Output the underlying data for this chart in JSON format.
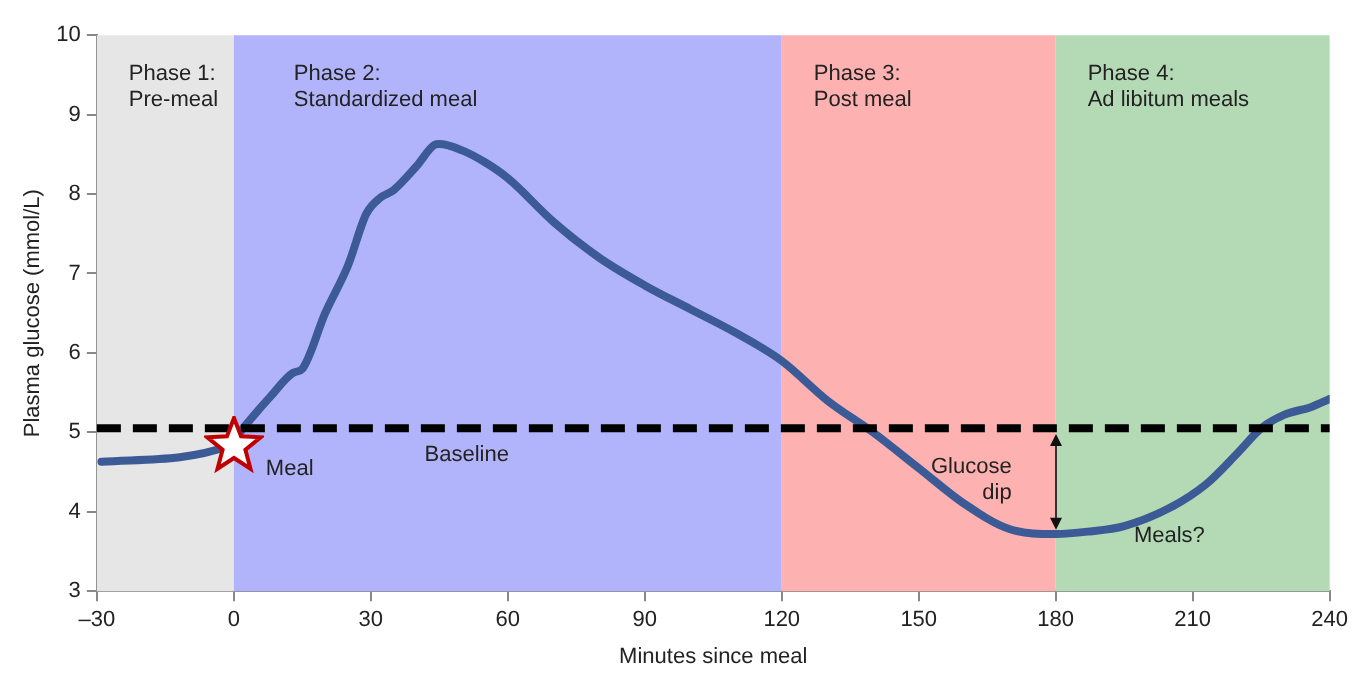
{
  "chart_data": {
    "type": "line",
    "xlabel": "Minutes since meal",
    "ylabel": "Plasma glucose (mmol/L)",
    "xlim": [
      -30,
      240
    ],
    "xticks": [
      {
        "value": -30,
        "label": "–30"
      },
      0,
      30,
      60,
      90,
      120,
      150,
      180,
      210,
      240
    ],
    "ylim": [
      3,
      10
    ],
    "yticks": [
      3,
      4,
      5,
      6,
      7,
      8,
      9,
      10
    ],
    "grid": false,
    "legend": false,
    "marker": "none",
    "line_style": "solid",
    "series": [
      {
        "color": "#3c5a96",
        "x": [
          -29,
          -1,
          2,
          8,
          13,
          15,
          20,
          25,
          29,
          32,
          35,
          40,
          44,
          45,
          50,
          55,
          60,
          70,
          80,
          90,
          100,
          110,
          120,
          130,
          140,
          150,
          160,
          170,
          180,
          187,
          195,
          205,
          213,
          220,
          225,
          230,
          236,
          240
        ],
        "values": [
          4.63,
          4.83,
          5.05,
          5.45,
          5.75,
          5.8,
          6.5,
          7.1,
          7.75,
          7.95,
          8.05,
          8.35,
          8.62,
          8.63,
          8.55,
          8.4,
          8.2,
          7.65,
          7.2,
          6.85,
          6.55,
          6.25,
          5.9,
          5.4,
          5.0,
          4.55,
          4.1,
          3.78,
          3.72,
          3.75,
          3.82,
          4.05,
          4.35,
          4.75,
          5.05,
          5.22,
          5.32,
          5.42
        ]
      }
    ],
    "bands": [
      {
        "axis": "x",
        "from": -30,
        "to": 0,
        "label": "Phase 1:\nPre-meal",
        "color": "#e6e6e6"
      },
      {
        "axis": "x",
        "from": 0,
        "to": 120,
        "label": "Phase 2:\nStandardized meal",
        "color": "#b2b4fb"
      },
      {
        "axis": "x",
        "from": 120,
        "to": 180,
        "label": "Phase 3:\nPost meal",
        "color": "#fdb1b0"
      },
      {
        "axis": "x",
        "from": 180,
        "to": 240,
        "label": "Phase 4:\nAd libitum meals",
        "color": "#b4d9b5"
      }
    ],
    "ref_lines": [
      {
        "axis": "y",
        "value": 5.05,
        "label": "Baseline",
        "color": "#000000",
        "line_style": "dashed"
      }
    ],
    "annotations": [
      {
        "text": "Meal",
        "x": 0,
        "y": 4.83
      },
      {
        "text": "Glucose\ndip",
        "x": 180,
        "y": 4.4
      },
      "Meals?"
    ]
  }
}
